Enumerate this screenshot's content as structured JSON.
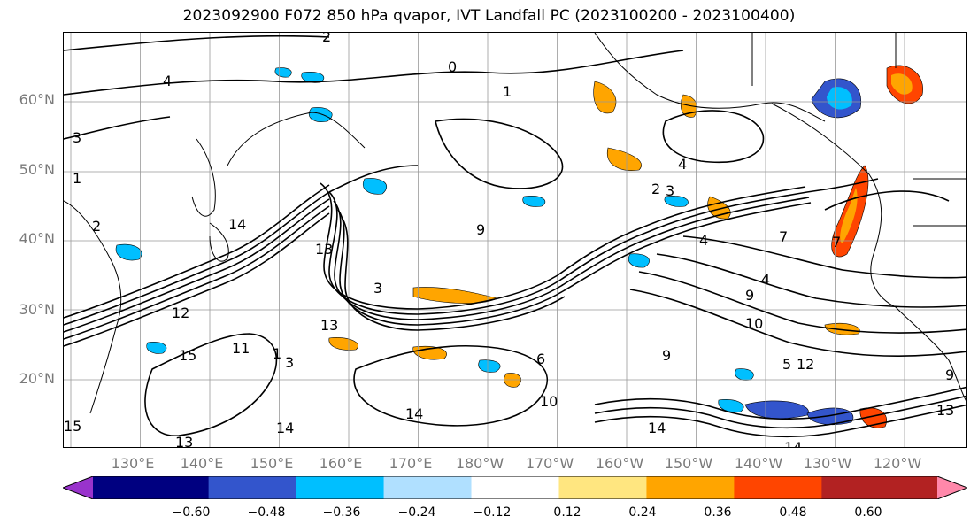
{
  "title": "2023092900 F072 850 hPa qvapor, IVT Landfall PC (2023100200 - 2023100400)",
  "lat_labels": [
    "60°N",
    "50°N",
    "40°N",
    "30°N",
    "20°N"
  ],
  "lon_labels": [
    "130°E",
    "140°E",
    "150°E",
    "160°E",
    "170°E",
    "180°W",
    "170°W",
    "160°W",
    "150°W",
    "140°W",
    "130°W",
    "120°W"
  ],
  "colorbar": {
    "ticks": [
      "−0.60",
      "−0.48",
      "−0.36",
      "−0.24",
      "−0.12",
      "0.12",
      "0.24",
      "0.36",
      "0.48",
      "0.60"
    ],
    "colors": [
      "#9933cc",
      "#000080",
      "#3355cc",
      "#00bfff",
      "#b0e0ff",
      "#ffffff",
      "#ffe680",
      "#ffa500",
      "#ff4500",
      "#b22222",
      "#ff88aa"
    ],
    "extend": "both"
  },
  "contour_labels": [
    "2",
    "0",
    "4",
    "1",
    "3",
    "14",
    "13",
    "9",
    "4",
    "2",
    "3",
    "1",
    "2",
    "4",
    "4",
    "13",
    "6",
    "3",
    "15",
    "1",
    "11",
    "12",
    "3",
    "14",
    "10",
    "14",
    "9",
    "10",
    "9",
    "12",
    "5",
    "14",
    "13",
    "9",
    "7",
    "15",
    "13",
    "14",
    "7"
  ],
  "map": {
    "projection": "equirectangular",
    "lon_range": [
      "120°E",
      "115°W"
    ],
    "lat_range": [
      "10°N",
      "70°N"
    ],
    "gridlines": true,
    "coastlines": true
  }
}
